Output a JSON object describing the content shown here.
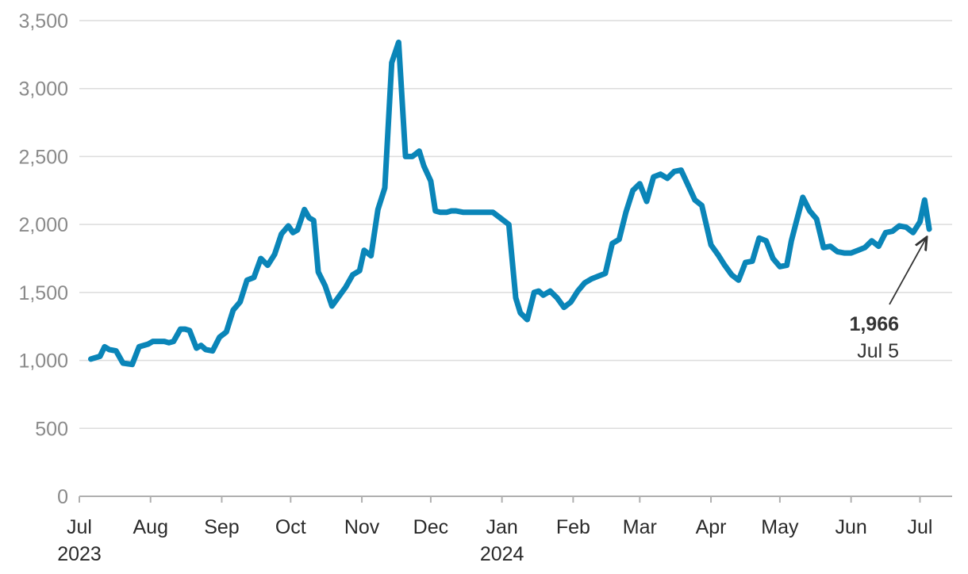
{
  "chart_data": {
    "type": "line",
    "title": "",
    "xlabel": "",
    "ylabel": "",
    "ylim": [
      0,
      3500
    ],
    "y_ticks": [
      {
        "value": 0,
        "label": "0"
      },
      {
        "value": 500,
        "label": "500"
      },
      {
        "value": 1000,
        "label": "1,000"
      },
      {
        "value": 1500,
        "label": "1,500"
      },
      {
        "value": 2000,
        "label": "2,000"
      },
      {
        "value": 2500,
        "label": "2,500"
      },
      {
        "value": 3000,
        "label": "3,000"
      },
      {
        "value": 3500,
        "label": "3,500"
      }
    ],
    "x_ticks": [
      {
        "date": "2023-07-01",
        "label": "Jul"
      },
      {
        "date": "2023-08-01",
        "label": "Aug"
      },
      {
        "date": "2023-09-01",
        "label": "Sep"
      },
      {
        "date": "2023-10-01",
        "label": "Oct"
      },
      {
        "date": "2023-11-01",
        "label": "Nov"
      },
      {
        "date": "2023-12-01",
        "label": "Dec"
      },
      {
        "date": "2024-01-01",
        "label": "Jan"
      },
      {
        "date": "2024-02-01",
        "label": "Feb"
      },
      {
        "date": "2024-03-01",
        "label": "Mar"
      },
      {
        "date": "2024-04-01",
        "label": "Apr"
      },
      {
        "date": "2024-05-01",
        "label": "May"
      },
      {
        "date": "2024-06-01",
        "label": "Jun"
      },
      {
        "date": "2024-07-01",
        "label": "Jul"
      }
    ],
    "year_labels": [
      {
        "date": "2023-07-01",
        "label": "2023"
      },
      {
        "date": "2024-01-01",
        "label": "2024"
      }
    ],
    "grid": true,
    "line_color": "#0a85b8",
    "series": [
      {
        "x": [
          "2023-07-06",
          "2023-07-10",
          "2023-07-12",
          "2023-07-14",
          "2023-07-17",
          "2023-07-20",
          "2023-07-24",
          "2023-07-27",
          "2023-07-31",
          "2023-08-02",
          "2023-08-04",
          "2023-08-07",
          "2023-08-09",
          "2023-08-11",
          "2023-08-14",
          "2023-08-16",
          "2023-08-18",
          "2023-08-21",
          "2023-08-23",
          "2023-08-25",
          "2023-08-28",
          "2023-08-31",
          "2023-09-03",
          "2023-09-06",
          "2023-09-09",
          "2023-09-12",
          "2023-09-15",
          "2023-09-18",
          "2023-09-21",
          "2023-09-24",
          "2023-09-27",
          "2023-09-30",
          "2023-10-02",
          "2023-10-04",
          "2023-10-07",
          "2023-10-09",
          "2023-10-11",
          "2023-10-13",
          "2023-10-16",
          "2023-10-19",
          "2023-10-22",
          "2023-10-25",
          "2023-10-28",
          "2023-10-31",
          "2023-11-02",
          "2023-11-05",
          "2023-11-08",
          "2023-11-11",
          "2023-11-14",
          "2023-11-17",
          "2023-11-20",
          "2023-11-23",
          "2023-11-26",
          "2023-11-28",
          "2023-12-01",
          "2023-12-03",
          "2023-12-05",
          "2023-12-06",
          "2023-12-08",
          "2023-12-10",
          "2023-12-12",
          "2023-12-15",
          "2023-12-18",
          "2023-12-21",
          "2023-12-24",
          "2023-12-28",
          "2024-01-04",
          "2024-01-07",
          "2024-01-09",
          "2024-01-12",
          "2024-01-15",
          "2024-01-17",
          "2024-01-19",
          "2024-01-22",
          "2024-01-25",
          "2024-01-28",
          "2024-01-31",
          "2024-02-03",
          "2024-02-06",
          "2024-02-09",
          "2024-02-12",
          "2024-02-15",
          "2024-02-18",
          "2024-02-21",
          "2024-02-24",
          "2024-02-27",
          "2024-03-01",
          "2024-03-04",
          "2024-03-07",
          "2024-03-10",
          "2024-03-13",
          "2024-03-16",
          "2024-03-19",
          "2024-03-22",
          "2024-03-25",
          "2024-03-28",
          "2024-04-01",
          "2024-04-04",
          "2024-04-07",
          "2024-04-10",
          "2024-04-13",
          "2024-04-16",
          "2024-04-19",
          "2024-04-22",
          "2024-04-25",
          "2024-04-28",
          "2024-05-01",
          "2024-05-04",
          "2024-05-06",
          "2024-05-08",
          "2024-05-11",
          "2024-05-14",
          "2024-05-17",
          "2024-05-20",
          "2024-05-23",
          "2024-05-26",
          "2024-05-29",
          "2024-06-01",
          "2024-06-04",
          "2024-06-07",
          "2024-06-10",
          "2024-06-13",
          "2024-06-16",
          "2024-06-19",
          "2024-06-22",
          "2024-06-25",
          "2024-06-28",
          "2024-07-01",
          "2024-07-03",
          "2024-07-05"
        ],
        "values": [
          1010,
          1030,
          1100,
          1080,
          1070,
          980,
          970,
          1100,
          1120,
          1140,
          1140,
          1140,
          1130,
          1140,
          1230,
          1230,
          1220,
          1090,
          1110,
          1080,
          1070,
          1170,
          1210,
          1370,
          1430,
          1590,
          1610,
          1750,
          1700,
          1780,
          1930,
          1990,
          1940,
          1960,
          2110,
          2050,
          2030,
          1650,
          1550,
          1400,
          1470,
          1540,
          1630,
          1660,
          1810,
          1770,
          2110,
          2270,
          3190,
          3340,
          2500,
          2500,
          2540,
          2430,
          2320,
          2100,
          2090,
          2090,
          2090,
          2100,
          2100,
          2090,
          2090,
          2090,
          2090,
          2090,
          2000,
          1460,
          1350,
          1300,
          1500,
          1510,
          1480,
          1510,
          1460,
          1390,
          1430,
          1510,
          1570,
          1600,
          1620,
          1640,
          1860,
          1890,
          2090,
          2250,
          2300,
          2170,
          2350,
          2370,
          2340,
          2390,
          2400,
          2290,
          2180,
          2140,
          1850,
          1780,
          1700,
          1630,
          1590,
          1720,
          1730,
          1900,
          1880,
          1750,
          1690,
          1700,
          1880,
          2010,
          2200,
          2100,
          2040,
          1830,
          1840,
          1800,
          1790,
          1790,
          1810,
          1830,
          1880,
          1840,
          1940,
          1950,
          1990,
          1980,
          1940,
          2020,
          2180,
          1966
        ]
      }
    ],
    "annotations": [
      {
        "value_label": "1,966",
        "date_label": "Jul 5",
        "date": "2024-07-05",
        "value": 1966
      }
    ]
  }
}
